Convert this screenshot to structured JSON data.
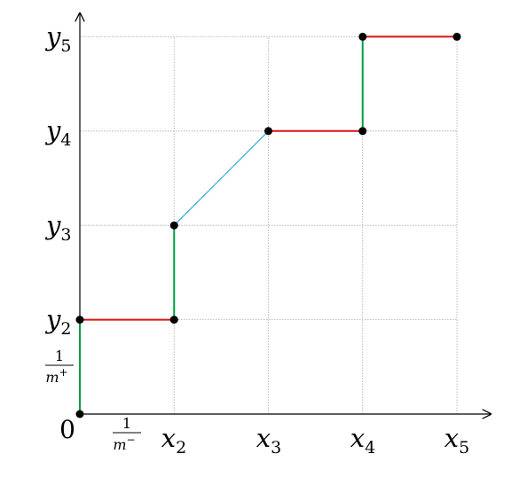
{
  "axes": {
    "origin_label": "0",
    "x_ticks": [
      {
        "base": "x",
        "sub": "2"
      },
      {
        "base": "x",
        "sub": "3"
      },
      {
        "base": "x",
        "sub": "4"
      },
      {
        "base": "x",
        "sub": "5"
      }
    ],
    "y_ticks": [
      {
        "base": "y",
        "sub": "2"
      },
      {
        "base": "y",
        "sub": "3"
      },
      {
        "base": "y",
        "sub": "4"
      },
      {
        "base": "y",
        "sub": "5"
      }
    ],
    "x_step": {
      "num": "1",
      "den": "m",
      "den_sup": "−"
    },
    "y_step": {
      "num": "1",
      "den": "m",
      "den_sup": "+"
    }
  },
  "points": [
    {
      "x": 0,
      "y": 0
    },
    {
      "x": 0,
      "y": 1
    },
    {
      "x": 1,
      "y": 1
    },
    {
      "x": 1,
      "y": 2
    },
    {
      "x": 2,
      "y": 3
    },
    {
      "x": 3,
      "y": 3
    },
    {
      "x": 3,
      "y": 4
    },
    {
      "x": 4,
      "y": 4
    }
  ],
  "segments": [
    {
      "from": 0,
      "to": 1,
      "kind": "vertical"
    },
    {
      "from": 1,
      "to": 2,
      "kind": "horizontal"
    },
    {
      "from": 2,
      "to": 3,
      "kind": "vertical"
    },
    {
      "from": 3,
      "to": 4,
      "kind": "diagonal"
    },
    {
      "from": 4,
      "to": 5,
      "kind": "horizontal"
    },
    {
      "from": 5,
      "to": 6,
      "kind": "vertical"
    },
    {
      "from": 6,
      "to": 7,
      "kind": "horizontal"
    }
  ],
  "colors": {
    "horizontal": "#dd1111",
    "vertical": "#00a040",
    "diagonal": "#22aadd",
    "grid": "#a8a8a8",
    "axis": "#000000",
    "point": "#000000"
  }
}
